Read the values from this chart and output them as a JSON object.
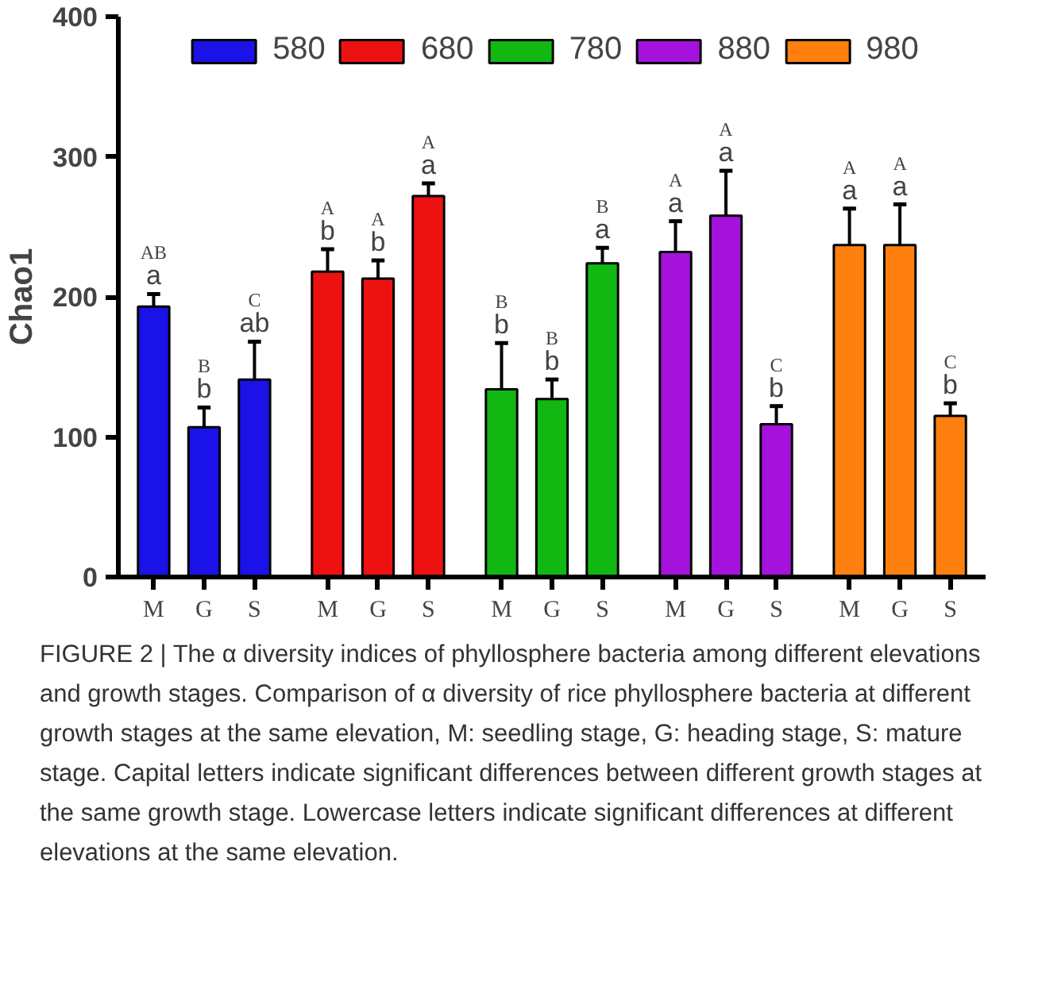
{
  "chart_data": {
    "type": "bar",
    "ylabel": "Chao1",
    "categories": [
      "M",
      "G",
      "S",
      "M",
      "G",
      "S",
      "M",
      "G",
      "S",
      "M",
      "G",
      "S",
      "M",
      "G",
      "S"
    ],
    "series": [
      {
        "name": "580",
        "color": "#1a12e6",
        "values": [
          193,
          107,
          141,
          null,
          null,
          null,
          null,
          null,
          null,
          null,
          null,
          null,
          null,
          null,
          null
        ],
        "errors": [
          [
            193,
            202
          ],
          [
            107,
            121
          ],
          [
            141,
            168
          ],
          null,
          null,
          null,
          null,
          null,
          null,
          null,
          null,
          null,
          null,
          null,
          null
        ]
      },
      {
        "name": "680",
        "color": "#ee1111",
        "values": [
          null,
          null,
          null,
          218,
          213,
          272,
          null,
          null,
          null,
          null,
          null,
          null,
          null,
          null,
          null
        ],
        "errors": [
          null,
          null,
          null,
          [
            218,
            234
          ],
          [
            213,
            226
          ],
          [
            272,
            281
          ],
          null,
          null,
          null,
          null,
          null,
          null,
          null,
          null,
          null
        ]
      },
      {
        "name": "780",
        "color": "#12b812",
        "values": [
          null,
          null,
          null,
          null,
          null,
          null,
          134,
          127,
          224,
          null,
          null,
          null,
          null,
          null,
          null
        ],
        "errors": [
          null,
          null,
          null,
          null,
          null,
          null,
          [
            134,
            167
          ],
          [
            127,
            141
          ],
          [
            224,
            235
          ],
          null,
          null,
          null,
          null,
          null,
          null
        ]
      },
      {
        "name": "880",
        "color": "#a412dc",
        "values": [
          null,
          null,
          null,
          null,
          null,
          null,
          null,
          null,
          null,
          232,
          258,
          109,
          null,
          null,
          null
        ],
        "errors": [
          null,
          null,
          null,
          null,
          null,
          null,
          null,
          null,
          null,
          [
            232,
            254
          ],
          [
            258,
            290
          ],
          [
            109,
            122
          ],
          null,
          null,
          null
        ]
      },
      {
        "name": "980",
        "color": "#ff800e",
        "values": [
          null,
          null,
          null,
          null,
          null,
          null,
          null,
          null,
          null,
          null,
          null,
          null,
          237,
          237,
          115
        ],
        "errors": [
          null,
          null,
          null,
          null,
          null,
          null,
          null,
          null,
          null,
          null,
          null,
          null,
          [
            237,
            263
          ],
          [
            237,
            266
          ],
          [
            115,
            124
          ]
        ]
      }
    ],
    "ylim": [
      0,
      400
    ],
    "yticks": [
      0,
      100,
      200,
      300,
      400
    ],
    "grid": false,
    "legend": "top",
    "annotations": [
      "a",
      "AB",
      "b",
      "B",
      "ab",
      "C",
      "b",
      "A",
      "b",
      "A",
      "a",
      "A",
      "b",
      "B",
      "b",
      "B",
      "a",
      "B",
      "a",
      "A",
      "a",
      "A",
      "b",
      "C",
      "a",
      "A",
      "a",
      "A",
      "b",
      "C",
      "FIGURE 2 | The α diversity indices of phyllosphere bacteria among different elevations and growth stages. Comparison of α diversity of rice phyllosphere bacteria at different growth stages at the same elevation, M: seedling stage, G: heading stage, S: mature stage. Capital letters indicate significant differences between different growth stages at the same growth stage. Lowercase letters indicate significant differences at different elevations at the same elevation."
    ]
  }
}
